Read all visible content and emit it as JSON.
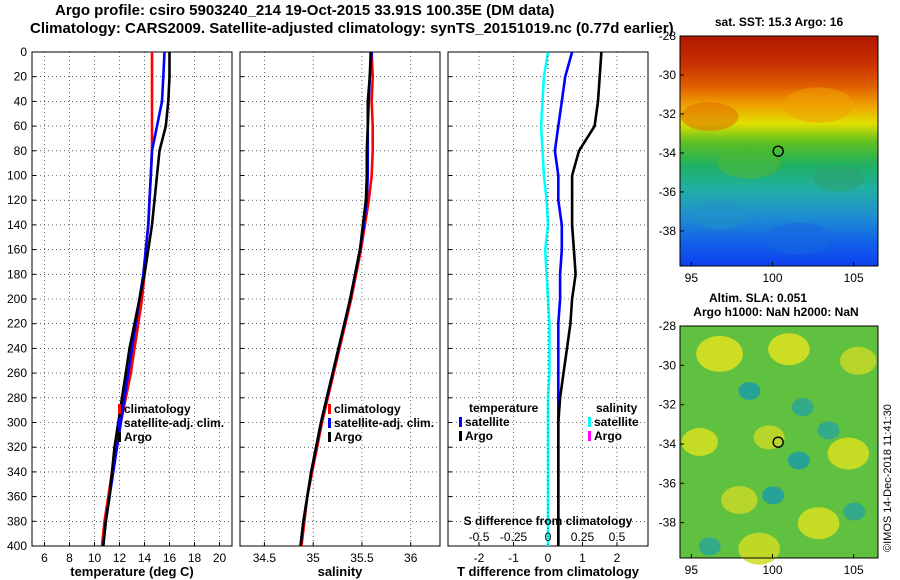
{
  "titles": {
    "line1": "Argo profile: csiro 5903240_214 19-Oct-2015 33.91S 100.35E (DM data)",
    "line2": "Climatology: CARS2009. Satellite-adjusted climatology: synTS_20151019.nc (0.77d earlier)"
  },
  "credit": "©IMOS 14-Dec-2018 11:41:30",
  "colors": {
    "climatology": "#ff0000",
    "satellite": "#0000ff",
    "argo": "#000000",
    "s_satellite": "#00ffff",
    "s_argo": "#ff00ff"
  },
  "chart_data": [
    {
      "type": "line",
      "panel": "temperature",
      "xlabel": "temperature (deg C)",
      "xlim": [
        5,
        21
      ],
      "ylim": [
        400,
        0
      ],
      "xticks": [
        6,
        8,
        10,
        12,
        14,
        16,
        18,
        20
      ],
      "yticks": [
        0,
        20,
        40,
        60,
        80,
        100,
        120,
        140,
        160,
        180,
        200,
        220,
        240,
        260,
        280,
        300,
        320,
        340,
        360,
        380,
        400
      ],
      "legend": [
        "climatology",
        "satellite-adj. clim.",
        "Argo"
      ],
      "series": [
        {
          "name": "climatology",
          "color": "#ff0000",
          "x": [
            14.6,
            14.6,
            14.6,
            14.6,
            14.6,
            14.5,
            14.4,
            14.3,
            14.1,
            14.0,
            13.8,
            13.5,
            13.2,
            12.9,
            12.5,
            12.1,
            11.8,
            11.4,
            11.1,
            10.8,
            10.6
          ],
          "y": [
            0,
            20,
            40,
            60,
            80,
            100,
            120,
            140,
            160,
            180,
            200,
            220,
            240,
            260,
            280,
            300,
            320,
            340,
            360,
            380,
            400
          ]
        },
        {
          "name": "satellite-adj. clim.",
          "color": "#0000ff",
          "x": [
            15.6,
            15.5,
            15.4,
            15.0,
            14.6,
            14.5,
            14.4,
            14.3,
            14.1,
            13.9,
            13.6,
            13.3,
            13.0,
            12.7,
            12.4,
            12.1,
            11.8,
            11.5,
            11.2,
            10.9,
            10.7
          ],
          "y": [
            0,
            20,
            40,
            60,
            80,
            100,
            120,
            140,
            160,
            180,
            200,
            220,
            240,
            260,
            280,
            300,
            320,
            340,
            360,
            380,
            400
          ]
        },
        {
          "name": "Argo",
          "color": "#000000",
          "x": [
            16.0,
            16.0,
            15.9,
            15.7,
            15.2,
            15.0,
            14.8,
            14.6,
            14.3,
            14.0,
            13.6,
            13.2,
            12.8,
            12.5,
            12.2,
            11.9,
            11.6,
            11.4,
            11.2,
            10.9,
            10.7
          ],
          "y": [
            0,
            20,
            40,
            60,
            80,
            100,
            120,
            140,
            160,
            180,
            200,
            220,
            240,
            260,
            280,
            300,
            320,
            340,
            360,
            380,
            400
          ]
        }
      ]
    },
    {
      "type": "line",
      "panel": "salinity",
      "xlabel": "salinity",
      "xlim": [
        34.25,
        36.3
      ],
      "ylim": [
        400,
        0
      ],
      "xticks": [
        34.5,
        35,
        35.5,
        36
      ],
      "xticklabels": [
        "34.5",
        "35",
        "35.5",
        "36"
      ],
      "legend": [
        "climatology",
        "satellite-adj. clim.",
        "Argo"
      ],
      "series": [
        {
          "name": "climatology",
          "color": "#ff0000",
          "x": [
            35.6,
            35.61,
            35.6,
            35.61,
            35.61,
            35.6,
            35.57,
            35.53,
            35.49,
            35.44,
            35.39,
            35.33,
            35.27,
            35.21,
            35.15,
            35.09,
            35.04,
            34.99,
            34.94,
            34.91,
            34.88
          ],
          "y": [
            0,
            20,
            40,
            60,
            80,
            100,
            120,
            140,
            160,
            180,
            200,
            220,
            240,
            260,
            280,
            300,
            320,
            340,
            360,
            380,
            400
          ]
        },
        {
          "name": "satellite-adj. clim.",
          "color": "#0000ff",
          "x": [
            35.6,
            35.58,
            35.57,
            35.56,
            35.56,
            35.56,
            35.55,
            35.52,
            35.48,
            35.43,
            35.38,
            35.32,
            35.26,
            35.2,
            35.14,
            35.08,
            35.03,
            34.98,
            34.94,
            34.9,
            34.87
          ],
          "y": [
            0,
            20,
            40,
            60,
            80,
            100,
            120,
            140,
            160,
            180,
            200,
            220,
            240,
            260,
            280,
            300,
            320,
            340,
            360,
            380,
            400
          ]
        },
        {
          "name": "Argo",
          "color": "#000000",
          "x": [
            35.59,
            35.58,
            35.56,
            35.56,
            35.55,
            35.55,
            35.54,
            35.51,
            35.48,
            35.43,
            35.38,
            35.32,
            35.26,
            35.2,
            35.14,
            35.08,
            35.03,
            34.98,
            34.94,
            34.9,
            34.87
          ],
          "y": [
            0,
            20,
            40,
            60,
            80,
            100,
            120,
            140,
            160,
            180,
            200,
            220,
            240,
            260,
            280,
            300,
            320,
            340,
            360,
            380,
            400
          ]
        }
      ]
    },
    {
      "type": "line",
      "panel": "difference",
      "xlabel": "T difference from climatology",
      "xlabel_top": "S difference from climatology",
      "xlim": [
        -2.9,
        2.9
      ],
      "ylim": [
        400,
        0
      ],
      "xticks": [
        -2,
        -1,
        0,
        1,
        2
      ],
      "xticks_top": [
        -0.5,
        -0.25,
        0,
        0.25,
        0.5
      ],
      "xticklabels_top": [
        "-0.5",
        "-0.25",
        "0",
        "0.25",
        "0.5"
      ],
      "s_scale": 4,
      "legend_left_title": "temperature",
      "legend_right_title": "salinity",
      "legend_left": [
        "satellite",
        "Argo"
      ],
      "legend_right": [
        "satellite",
        "Argo"
      ],
      "series": [
        {
          "name": "T satellite",
          "color": "#0000ff",
          "x": [
            0.7,
            0.5,
            0.4,
            0.3,
            0.2,
            0.3,
            0.3,
            0.4,
            0.4,
            0.35,
            0.35,
            0.3,
            0.3,
            0.3,
            0.3,
            0.3,
            0.3,
            0.3,
            0.3,
            0.3,
            0.3
          ],
          "y": [
            0,
            20,
            40,
            60,
            80,
            100,
            120,
            140,
            160,
            180,
            200,
            220,
            240,
            260,
            280,
            300,
            320,
            340,
            360,
            380,
            400
          ]
        },
        {
          "name": "T Argo",
          "color": "#000000",
          "x": [
            1.55,
            1.5,
            1.45,
            1.35,
            0.9,
            0.7,
            0.7,
            0.7,
            0.75,
            0.8,
            0.7,
            0.65,
            0.55,
            0.45,
            0.35,
            0.3,
            0.3,
            0.3,
            0.3,
            0.3,
            0.3
          ],
          "y": [
            0,
            20,
            40,
            60,
            80,
            100,
            120,
            140,
            160,
            180,
            200,
            220,
            240,
            260,
            280,
            300,
            320,
            340,
            360,
            380,
            400
          ]
        },
        {
          "name": "S satellite",
          "color": "#00ffff",
          "x": [
            0.0,
            -0.03,
            -0.04,
            -0.05,
            -0.04,
            -0.03,
            -0.01,
            0.0,
            -0.02,
            -0.01,
            0.0,
            0.01,
            0.01,
            0.01,
            0.0,
            0.0,
            0.0,
            0.0,
            0.0,
            0.0,
            0.0
          ],
          "y": [
            0,
            20,
            40,
            60,
            80,
            100,
            120,
            140,
            160,
            180,
            200,
            220,
            240,
            260,
            280,
            300,
            320,
            340,
            360,
            380,
            400
          ]
        }
      ]
    },
    {
      "type": "heatmap",
      "panel": "sst",
      "title": "sat. SST: 15.3 Argo: 16",
      "xlim": [
        94.3,
        106.5
      ],
      "ylim": [
        -39.8,
        -28
      ],
      "xticks": [
        95,
        100,
        105
      ],
      "yticks": [
        -28,
        -30,
        -32,
        -34,
        -36,
        -38
      ],
      "marker": {
        "lon": 100.35,
        "lat": -33.91
      }
    },
    {
      "type": "heatmap",
      "panel": "sla",
      "title_line1": "Altim. SLA: 0.051",
      "title_line2": "Argo h1000: NaN h2000: NaN",
      "xlim": [
        94.3,
        106.5
      ],
      "ylim": [
        -39.8,
        -28
      ],
      "xticks": [
        95,
        100,
        105
      ],
      "yticks": [
        -28,
        -30,
        -32,
        -34,
        -36,
        -38
      ],
      "marker": {
        "lon": 100.35,
        "lat": -33.91
      }
    }
  ]
}
